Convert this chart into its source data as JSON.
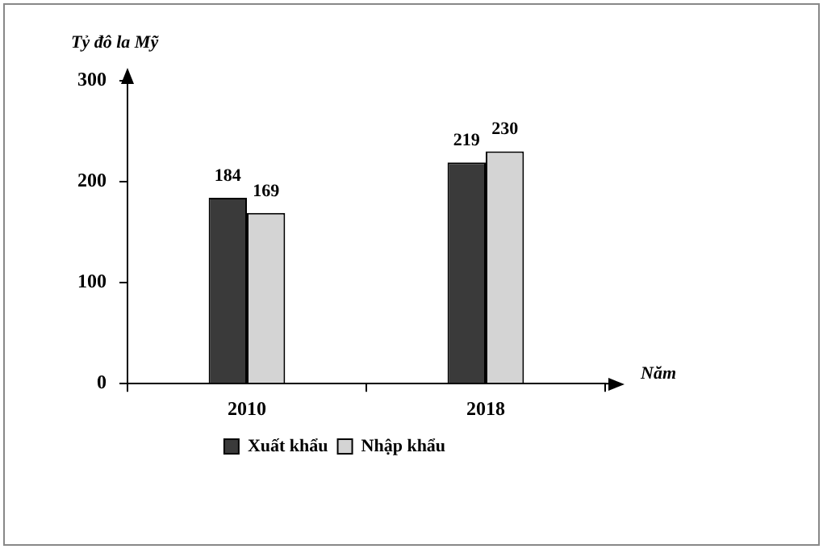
{
  "chart_data": {
    "type": "bar",
    "ylabel": "Tỷ đô la Mỹ",
    "xlabel": "Năm",
    "categories": [
      "2010",
      "2018"
    ],
    "series": [
      {
        "name": "Xuất khẩu",
        "color": "#3a3a3a",
        "values": [
          184,
          219
        ]
      },
      {
        "name": "Nhập khẩu",
        "color": "#d4d4d4",
        "values": [
          169,
          230
        ]
      }
    ],
    "ylim": [
      0,
      300
    ],
    "yticks": [
      0,
      100,
      200,
      300
    ],
    "grid": false,
    "legend": "bottom",
    "data_labels": true
  }
}
